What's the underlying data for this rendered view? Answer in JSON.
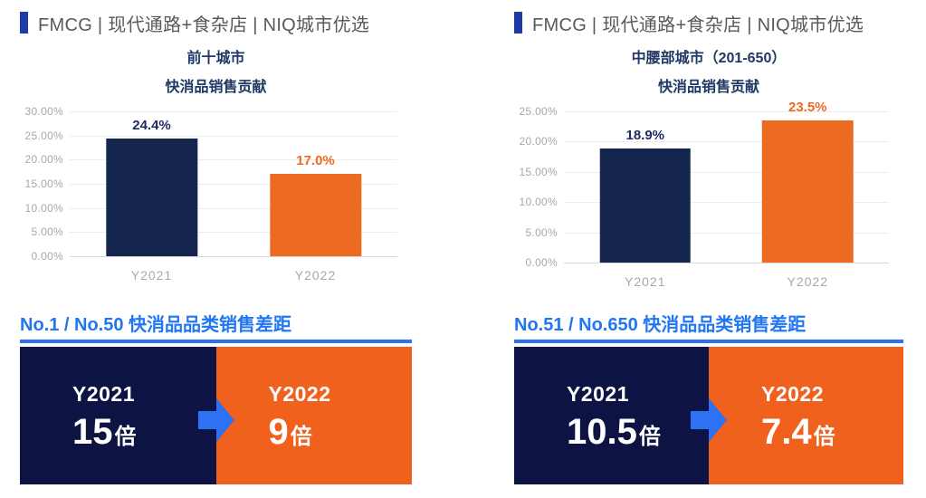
{
  "colors": {
    "navy_bar": "#14264E",
    "orange_bar": "#ED6A21",
    "label_navy": "#1E2B5E",
    "banner_navy": "#0D1342",
    "banner_orange": "#F0611E",
    "banner_text": "#FFFFFF",
    "accent_blue": "#2E71F2",
    "heading_blue": "#2176F2",
    "header_marker": "#1F3BA5",
    "header_text": "#595959",
    "title_navy": "#1F3864",
    "axis_gray": "#A8A8A8"
  },
  "panels": [
    {
      "header": {
        "text": "FMCG | 现代通路+食杂店 | NIQ城市优选"
      },
      "chart_title": [
        "前十城市",
        "快消品销售贡献"
      ],
      "section_heading": "No.1 / No.50 快消品品类销售差距",
      "banner": {
        "from": {
          "year": "Y2021",
          "value": "15",
          "unit": "倍"
        },
        "to": {
          "year": "Y2022",
          "value": "9",
          "unit": "倍"
        }
      }
    },
    {
      "header": {
        "text": "FMCG | 现代通路+食杂店 | NIQ城市优选"
      },
      "chart_title": [
        "中腰部城市（201-650）",
        "快消品销售贡献"
      ],
      "section_heading": "No.51 / No.650 快消品品类销售差距",
      "banner": {
        "from": {
          "year": "Y2021",
          "value": "10.5",
          "unit": "倍"
        },
        "to": {
          "year": "Y2022",
          "value": "7.4",
          "unit": "倍"
        }
      }
    }
  ],
  "chart_data": [
    {
      "type": "bar",
      "title": "前十城市 快消品销售贡献",
      "categories": [
        "Y2021",
        "Y2022"
      ],
      "values": [
        24.4,
        17.0
      ],
      "labels": [
        "24.4%",
        "17.0%"
      ],
      "ylim": [
        0,
        30
      ],
      "yticks": [
        "30.00%",
        "25.00%",
        "20.00%",
        "15.00%",
        "10.00%",
        "5.00%",
        "0.00%"
      ],
      "bar_colors": [
        "#14264E",
        "#ED6A21"
      ],
      "grid": true,
      "legend": "none"
    },
    {
      "type": "bar",
      "title": "中腰部城市（201-650） 快消品销售贡献",
      "categories": [
        "Y2021",
        "Y2022"
      ],
      "values": [
        18.9,
        23.5
      ],
      "labels": [
        "18.9%",
        "23.5%"
      ],
      "ylim": [
        0,
        25
      ],
      "yticks": [
        "25.00%",
        "20.00%",
        "15.00%",
        "10.00%",
        "5.00%",
        "0.00%"
      ],
      "bar_colors": [
        "#14264E",
        "#ED6A21"
      ],
      "grid": true,
      "legend": "none"
    }
  ]
}
